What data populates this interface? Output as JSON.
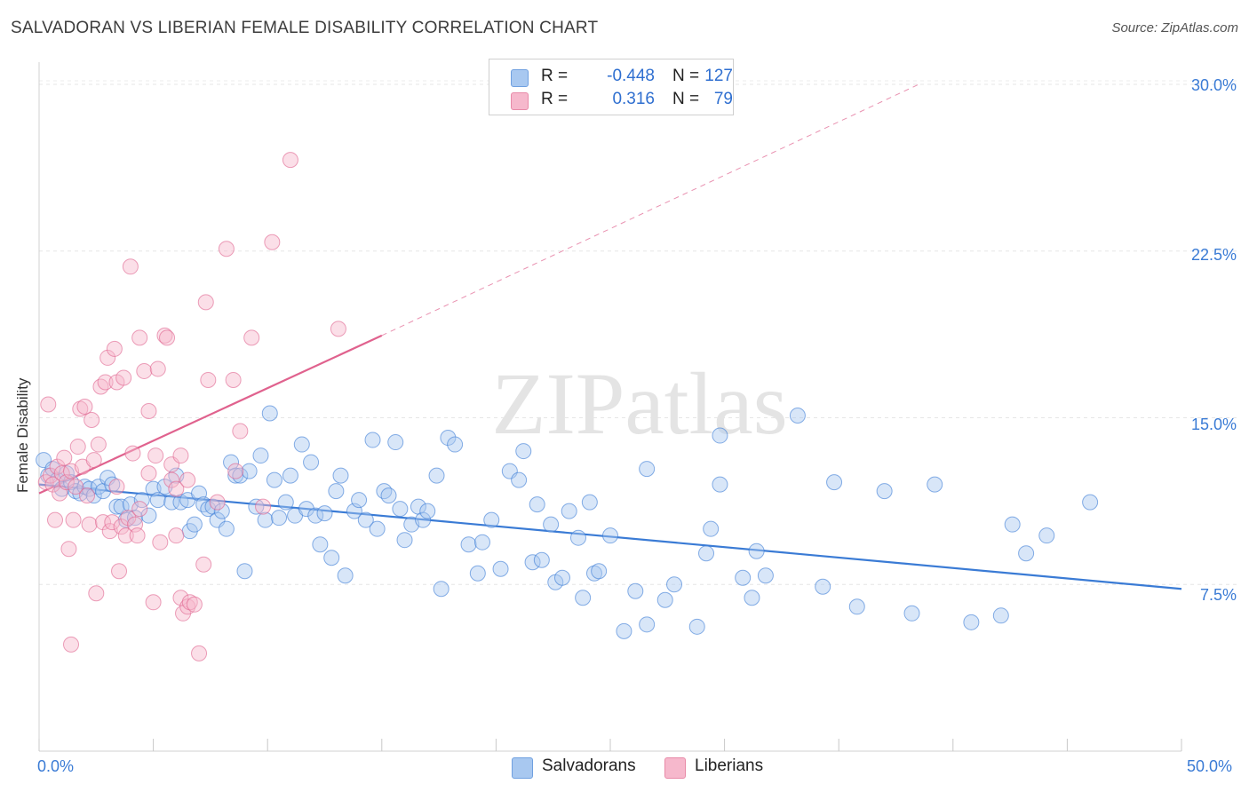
{
  "title": "SALVADORAN VS LIBERIAN FEMALE DISABILITY CORRELATION CHART",
  "source": "Source: ZipAtlas.com",
  "legend_top": [
    {
      "r_label": "R =",
      "r_value": "-0.448",
      "n_label": "N =",
      "n_value": "127",
      "color": "#a8c8f0"
    },
    {
      "r_label": "R =",
      "r_value": "0.316",
      "n_label": "N =",
      "n_value": "79",
      "color": "#f6b8cc"
    }
  ],
  "legend_bottom": [
    {
      "label": "Salvadorans",
      "color": "#a8c8f0"
    },
    {
      "label": "Liberians",
      "color": "#f6b8cc"
    }
  ],
  "watermark": "ZIPatlas",
  "chart_data": {
    "type": "scatter",
    "ylabel": "Female Disability",
    "xlim": [
      0,
      50
    ],
    "ylim": [
      0,
      31
    ],
    "y_ticks": [
      {
        "v": 7.5,
        "label": "7.5%"
      },
      {
        "v": 15,
        "label": "15.0%"
      },
      {
        "v": 22.5,
        "label": "22.5%"
      },
      {
        "v": 30,
        "label": "30.0%"
      }
    ],
    "x_tick_labels": {
      "min": "0.0%",
      "max": "50.0%"
    },
    "grid": true,
    "series": [
      {
        "name": "Salvadorans",
        "color": "#3a7bd5",
        "fill": "#a8c8f0",
        "trend": {
          "x0": 0,
          "y0": 12.0,
          "x1": 50,
          "y1": 7.3
        },
        "points": [
          [
            0.2,
            13.1
          ],
          [
            0.4,
            12.4
          ],
          [
            0.6,
            12.7
          ],
          [
            0.8,
            12.2
          ],
          [
            1.0,
            11.8
          ],
          [
            1.2,
            12.5
          ],
          [
            1.4,
            12.1
          ],
          [
            1.6,
            11.7
          ],
          [
            1.8,
            11.6
          ],
          [
            2.0,
            11.9
          ],
          [
            2.2,
            11.8
          ],
          [
            2.4,
            11.5
          ],
          [
            2.6,
            11.9
          ],
          [
            2.8,
            11.7
          ],
          [
            3.0,
            12.3
          ],
          [
            3.2,
            12.0
          ],
          [
            3.4,
            11.0
          ],
          [
            3.6,
            11.0
          ],
          [
            3.8,
            10.4
          ],
          [
            4.0,
            11.1
          ],
          [
            4.2,
            10.5
          ],
          [
            4.5,
            11.3
          ],
          [
            4.8,
            10.6
          ],
          [
            5.0,
            11.8
          ],
          [
            5.2,
            11.3
          ],
          [
            5.5,
            11.9
          ],
          [
            5.8,
            11.2
          ],
          [
            6.0,
            12.4
          ],
          [
            6.2,
            11.2
          ],
          [
            6.5,
            11.3
          ],
          [
            6.6,
            9.9
          ],
          [
            6.8,
            10.2
          ],
          [
            7.0,
            11.6
          ],
          [
            7.2,
            11.1
          ],
          [
            7.4,
            10.9
          ],
          [
            7.6,
            11.0
          ],
          [
            7.8,
            10.4
          ],
          [
            8.0,
            10.8
          ],
          [
            8.2,
            10.0
          ],
          [
            8.4,
            13.0
          ],
          [
            8.6,
            12.4
          ],
          [
            8.8,
            12.4
          ],
          [
            9.0,
            8.1
          ],
          [
            9.2,
            12.6
          ],
          [
            9.5,
            11.0
          ],
          [
            9.7,
            13.3
          ],
          [
            9.9,
            10.4
          ],
          [
            10.1,
            15.2
          ],
          [
            10.3,
            12.2
          ],
          [
            10.5,
            10.5
          ],
          [
            10.8,
            11.2
          ],
          [
            11.0,
            12.4
          ],
          [
            11.2,
            10.6
          ],
          [
            11.5,
            13.8
          ],
          [
            11.7,
            10.9
          ],
          [
            11.9,
            13.0
          ],
          [
            12.1,
            10.6
          ],
          [
            12.3,
            9.3
          ],
          [
            12.5,
            10.7
          ],
          [
            12.8,
            8.7
          ],
          [
            13.0,
            11.7
          ],
          [
            13.2,
            12.4
          ],
          [
            13.4,
            7.9
          ],
          [
            13.8,
            10.8
          ],
          [
            14.0,
            11.3
          ],
          [
            14.3,
            10.4
          ],
          [
            14.6,
            14.0
          ],
          [
            14.8,
            10.0
          ],
          [
            15.1,
            11.7
          ],
          [
            15.3,
            11.5
          ],
          [
            15.6,
            13.9
          ],
          [
            15.8,
            10.9
          ],
          [
            16.0,
            9.5
          ],
          [
            16.3,
            10.2
          ],
          [
            16.6,
            11.0
          ],
          [
            16.8,
            10.4
          ],
          [
            17.0,
            10.8
          ],
          [
            17.4,
            12.4
          ],
          [
            17.6,
            7.3
          ],
          [
            17.9,
            14.1
          ],
          [
            18.2,
            13.8
          ],
          [
            18.8,
            9.3
          ],
          [
            19.2,
            8.0
          ],
          [
            19.4,
            9.4
          ],
          [
            19.8,
            10.4
          ],
          [
            20.2,
            8.2
          ],
          [
            20.6,
            12.6
          ],
          [
            21.0,
            12.2
          ],
          [
            21.2,
            13.5
          ],
          [
            21.6,
            8.5
          ],
          [
            21.8,
            11.1
          ],
          [
            22.0,
            8.6
          ],
          [
            22.4,
            10.2
          ],
          [
            22.6,
            7.6
          ],
          [
            22.9,
            7.8
          ],
          [
            23.2,
            10.8
          ],
          [
            23.6,
            9.6
          ],
          [
            23.8,
            6.9
          ],
          [
            24.1,
            11.2
          ],
          [
            24.3,
            8.0
          ],
          [
            24.5,
            8.1
          ],
          [
            25.0,
            9.7
          ],
          [
            25.6,
            5.4
          ],
          [
            26.1,
            7.2
          ],
          [
            26.6,
            5.7
          ],
          [
            26.6,
            12.7
          ],
          [
            27.4,
            6.8
          ],
          [
            27.8,
            7.5
          ],
          [
            28.8,
            5.6
          ],
          [
            29.2,
            8.9
          ],
          [
            29.4,
            10.0
          ],
          [
            29.8,
            12.0
          ],
          [
            29.8,
            14.2
          ],
          [
            30.8,
            7.8
          ],
          [
            31.2,
            6.9
          ],
          [
            31.4,
            9.0
          ],
          [
            31.8,
            7.9
          ],
          [
            33.2,
            15.1
          ],
          [
            34.3,
            7.4
          ],
          [
            34.8,
            12.1
          ],
          [
            35.8,
            6.5
          ],
          [
            37.0,
            11.7
          ],
          [
            38.2,
            6.2
          ],
          [
            39.2,
            12.0
          ],
          [
            40.8,
            5.8
          ],
          [
            42.1,
            6.1
          ],
          [
            42.6,
            10.2
          ],
          [
            43.2,
            8.9
          ],
          [
            44.1,
            9.7
          ],
          [
            46.0,
            11.2
          ]
        ]
      },
      {
        "name": "Liberians",
        "color": "#e0628e",
        "fill": "#f6b8cc",
        "trend": {
          "x0": 0,
          "y0": 11.6,
          "x1": 15,
          "y1": 18.7
        },
        "trend_extension": {
          "x0": 15,
          "y0": 18.7,
          "x1": 38.5,
          "y1": 30.0
        },
        "points": [
          [
            0.3,
            12.1
          ],
          [
            0.4,
            15.6
          ],
          [
            0.5,
            12.4
          ],
          [
            0.6,
            12.0
          ],
          [
            0.7,
            10.4
          ],
          [
            0.8,
            12.8
          ],
          [
            0.9,
            11.6
          ],
          [
            1.0,
            12.5
          ],
          [
            1.1,
            13.2
          ],
          [
            1.2,
            12.1
          ],
          [
            1.3,
            9.1
          ],
          [
            1.4,
            12.6
          ],
          [
            1.5,
            10.4
          ],
          [
            1.6,
            11.9
          ],
          [
            1.7,
            13.7
          ],
          [
            1.8,
            15.4
          ],
          [
            1.9,
            12.8
          ],
          [
            2.0,
            15.5
          ],
          [
            2.1,
            11.5
          ],
          [
            2.2,
            10.2
          ],
          [
            2.3,
            14.9
          ],
          [
            2.4,
            13.1
          ],
          [
            2.5,
            7.1
          ],
          [
            2.6,
            13.8
          ],
          [
            2.7,
            16.4
          ],
          [
            2.8,
            10.3
          ],
          [
            2.9,
            16.6
          ],
          [
            3.0,
            17.7
          ],
          [
            3.1,
            9.9
          ],
          [
            3.2,
            10.3
          ],
          [
            3.3,
            18.1
          ],
          [
            3.4,
            16.6
          ],
          [
            3.5,
            8.1
          ],
          [
            3.6,
            10.1
          ],
          [
            3.7,
            16.8
          ],
          [
            3.8,
            9.7
          ],
          [
            3.9,
            10.5
          ],
          [
            4.0,
            21.8
          ],
          [
            4.1,
            13.4
          ],
          [
            4.2,
            10.2
          ],
          [
            4.3,
            9.7
          ],
          [
            4.4,
            18.6
          ],
          [
            4.6,
            17.1
          ],
          [
            4.8,
            15.3
          ],
          [
            5.0,
            6.7
          ],
          [
            5.1,
            13.3
          ],
          [
            5.2,
            17.2
          ],
          [
            5.3,
            9.4
          ],
          [
            5.5,
            18.7
          ],
          [
            5.6,
            18.6
          ],
          [
            5.8,
            12.2
          ],
          [
            6.0,
            9.7
          ],
          [
            6.2,
            6.9
          ],
          [
            6.3,
            6.2
          ],
          [
            6.5,
            6.5
          ],
          [
            6.6,
            6.7
          ],
          [
            6.8,
            6.6
          ],
          [
            7.0,
            4.4
          ],
          [
            7.2,
            8.4
          ],
          [
            7.3,
            20.2
          ],
          [
            7.4,
            16.7
          ],
          [
            7.8,
            11.2
          ],
          [
            8.2,
            22.6
          ],
          [
            8.5,
            16.7
          ],
          [
            8.6,
            12.6
          ],
          [
            8.8,
            14.4
          ],
          [
            9.3,
            18.6
          ],
          [
            9.8,
            11.0
          ],
          [
            10.2,
            22.9
          ],
          [
            11.0,
            26.6
          ],
          [
            13.1,
            19.0
          ],
          [
            4.8,
            12.5
          ],
          [
            5.8,
            12.9
          ],
          [
            6.0,
            11.8
          ],
          [
            6.2,
            13.3
          ],
          [
            6.5,
            12.2
          ],
          [
            3.4,
            11.9
          ],
          [
            1.4,
            4.8
          ],
          [
            4.4,
            10.9
          ]
        ]
      }
    ]
  }
}
